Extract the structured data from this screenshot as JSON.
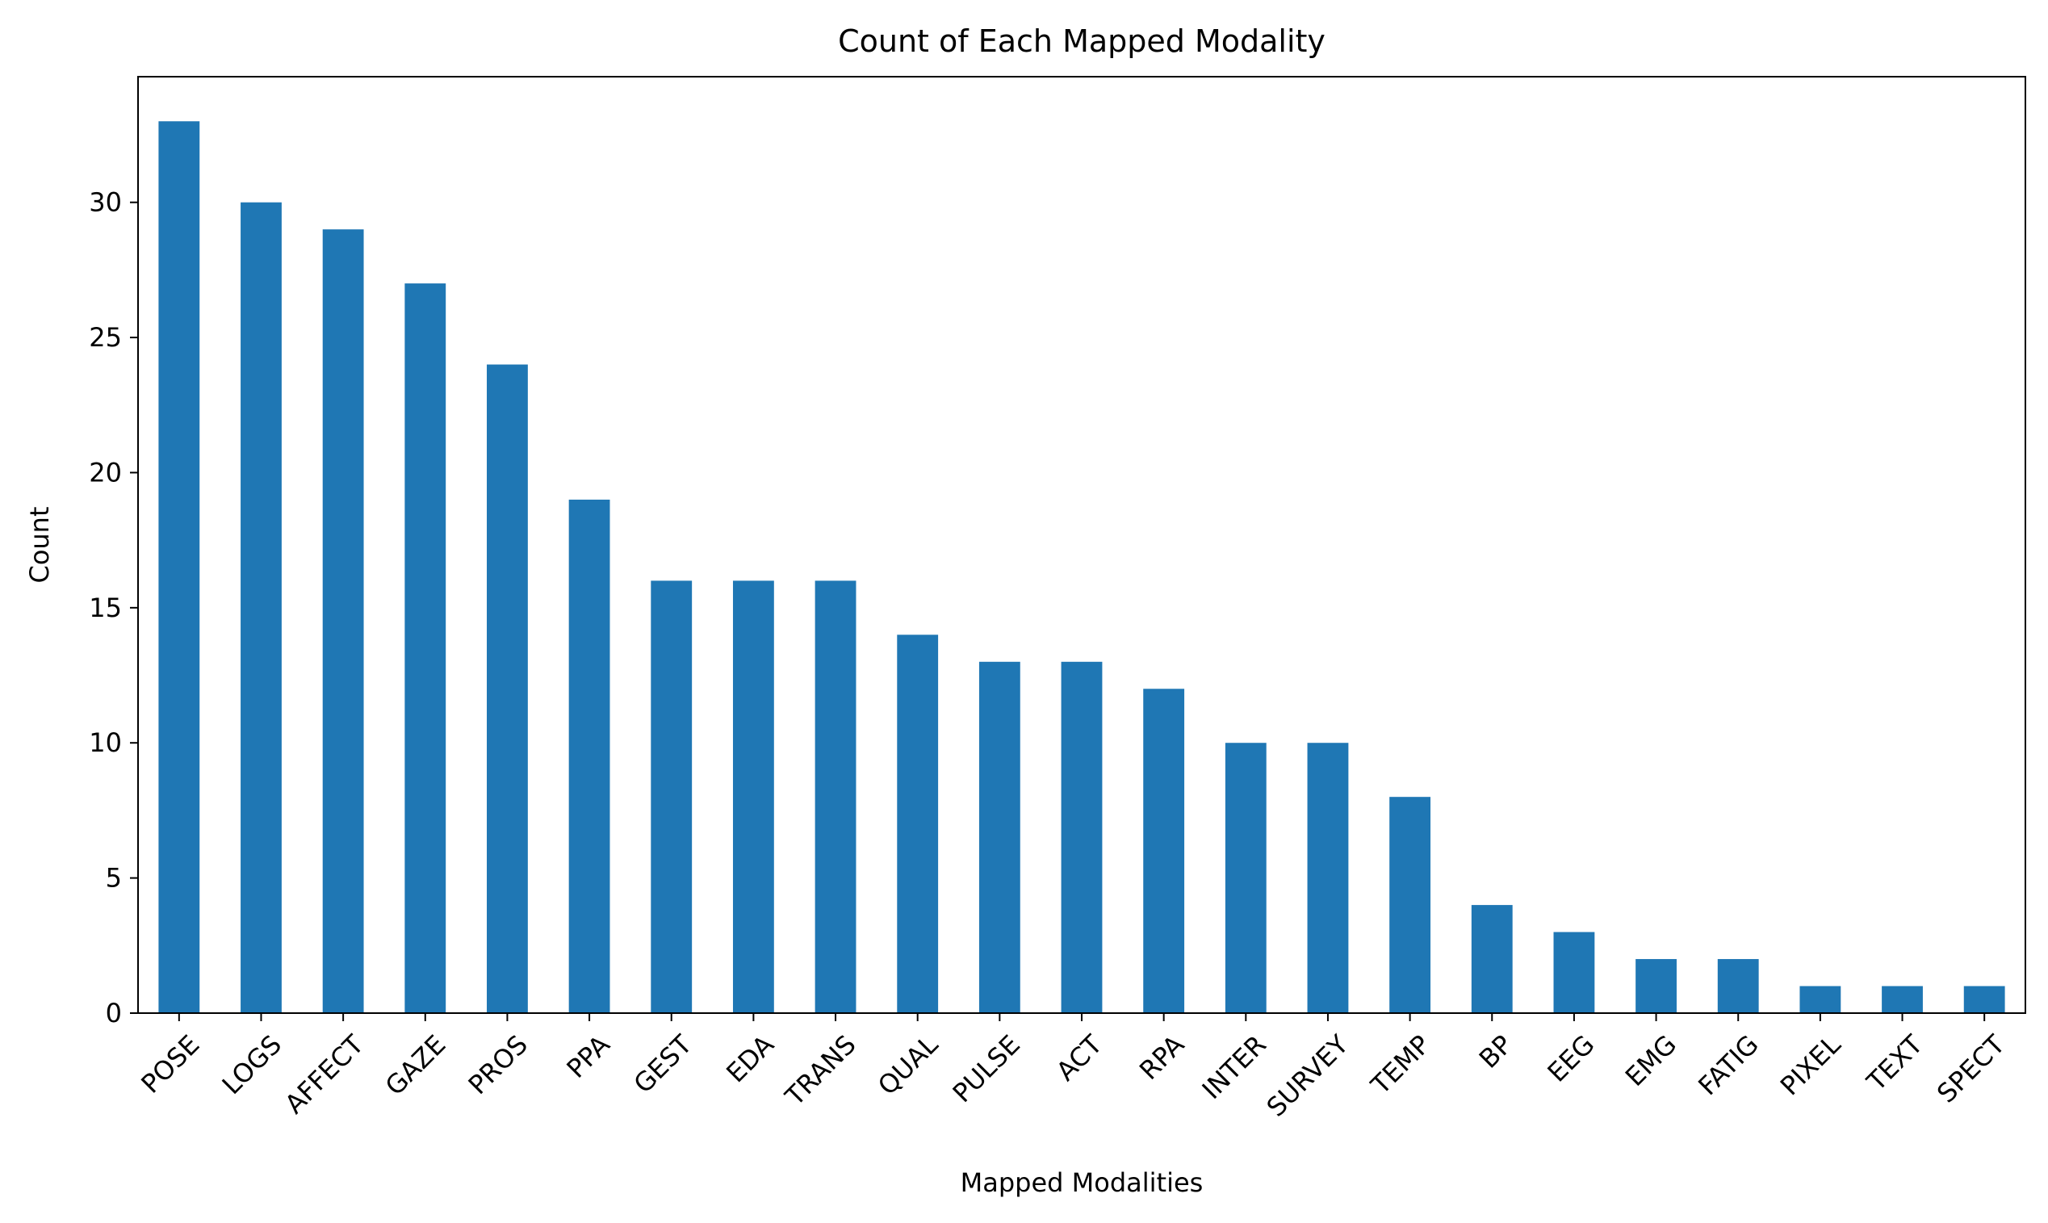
{
  "chart_data": {
    "type": "bar",
    "title": "Count of Each Mapped Modality",
    "xlabel": "Mapped Modalities",
    "ylabel": "Count",
    "categories": [
      "POSE",
      "LOGS",
      "AFFECT",
      "GAZE",
      "PROS",
      "PPA",
      "GEST",
      "EDA",
      "TRANS",
      "QUAL",
      "PULSE",
      "ACT",
      "RPA",
      "INTER",
      "SURVEY",
      "TEMP",
      "BP",
      "EEG",
      "EMG",
      "FATIG",
      "PIXEL",
      "TEXT",
      "SPECT"
    ],
    "values": [
      33,
      30,
      29,
      27,
      24,
      19,
      16,
      16,
      16,
      14,
      13,
      13,
      12,
      10,
      10,
      8,
      4,
      3,
      2,
      2,
      1,
      1,
      1
    ],
    "ylim": [
      0,
      34.65
    ],
    "yticks": [
      0,
      5,
      10,
      15,
      20,
      25,
      30
    ],
    "grid": false,
    "legend": "none",
    "bar_color": "#1f77b4"
  }
}
